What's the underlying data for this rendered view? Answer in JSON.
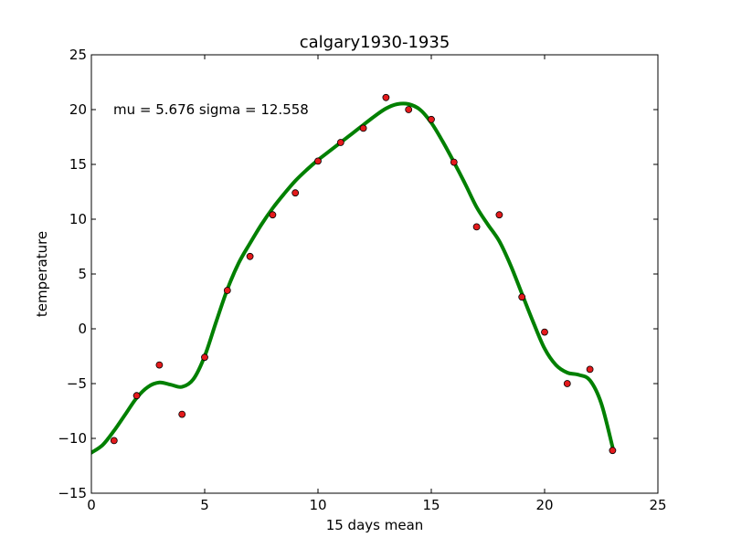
{
  "chart_data": {
    "type": "scatter",
    "title": "calgary1930-1935",
    "xlabel": "15 days mean",
    "ylabel": "temperature",
    "xlim": [
      0,
      25
    ],
    "ylim": [
      -15,
      25
    ],
    "xticks": [
      0,
      5,
      10,
      15,
      20,
      25
    ],
    "yticks": [
      -15,
      -10,
      -5,
      0,
      5,
      10,
      15,
      20,
      25
    ],
    "xtick_labels": [
      "0",
      "5",
      "10",
      "15",
      "20",
      "25"
    ],
    "ytick_labels": [
      "−15",
      "−10",
      "−5",
      "0",
      "5",
      "10",
      "15",
      "20",
      "25"
    ],
    "grid": false,
    "annotation": "mu = 5.676 sigma = 12.558",
    "colors": {
      "points": "#e41a1c",
      "point_edge": "#000000",
      "curve": "#008000"
    },
    "series": [
      {
        "kind": "points",
        "x": [
          1,
          2,
          3,
          4,
          5,
          6,
          7,
          8,
          9,
          10,
          11,
          12,
          13,
          14,
          15,
          16,
          17,
          18,
          19,
          20,
          21,
          22,
          23
        ],
        "y": [
          -10.2,
          -6.1,
          -3.3,
          -7.8,
          -2.6,
          3.5,
          6.6,
          10.4,
          12.4,
          15.3,
          17.0,
          18.3,
          21.1,
          20.0,
          19.1,
          15.2,
          9.3,
          10.4,
          2.9,
          -0.3,
          -5.0,
          -3.7,
          -11.1
        ]
      },
      {
        "kind": "fit-curve",
        "x": [
          0,
          0.5,
          1,
          1.5,
          2,
          2.5,
          3,
          3.5,
          4,
          4.5,
          5,
          5.5,
          6,
          6.5,
          7,
          7.5,
          8,
          8.5,
          9,
          9.5,
          10,
          10.5,
          11,
          11.5,
          12,
          12.5,
          13,
          13.5,
          14,
          14.5,
          15,
          15.5,
          16,
          16.5,
          17,
          17.5,
          18,
          18.5,
          19,
          19.5,
          20,
          20.5,
          21,
          21.5,
          22,
          22.5,
          23
        ],
        "y": [
          -11.3,
          -10.6,
          -9.3,
          -7.8,
          -6.3,
          -5.3,
          -4.9,
          -5.1,
          -5.3,
          -4.6,
          -2.5,
          0.6,
          3.6,
          6.0,
          7.8,
          9.5,
          11.0,
          12.3,
          13.5,
          14.5,
          15.4,
          16.2,
          17.0,
          17.8,
          18.6,
          19.4,
          20.1,
          20.5,
          20.5,
          20.0,
          18.8,
          17.1,
          15.2,
          13.2,
          11.1,
          9.5,
          8.0,
          5.8,
          3.2,
          0.6,
          -1.8,
          -3.3,
          -4.0,
          -4.2,
          -4.7,
          -6.8,
          -10.8
        ]
      }
    ]
  }
}
